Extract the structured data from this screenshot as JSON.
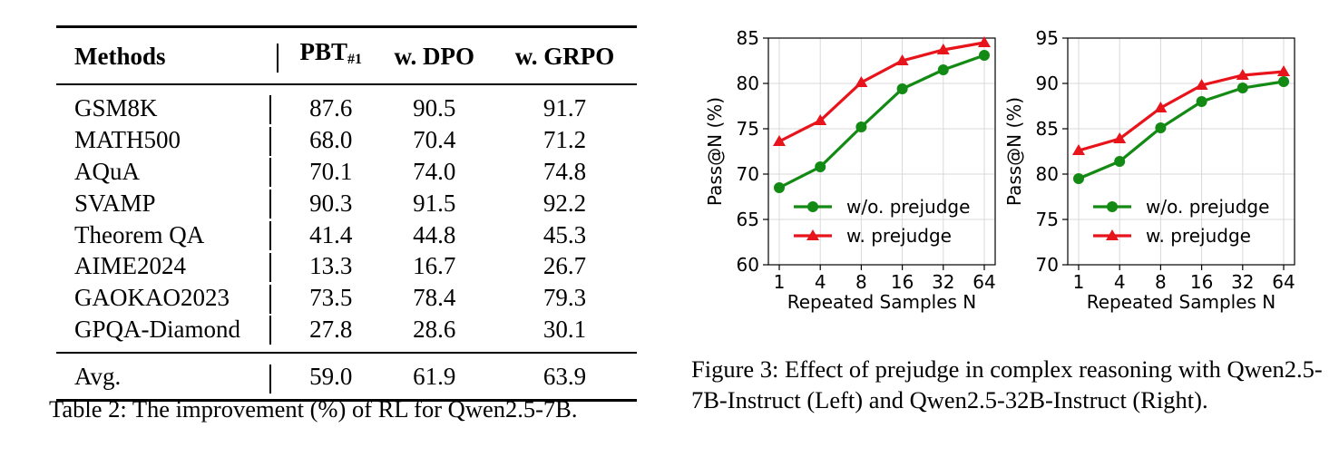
{
  "table": {
    "headers": [
      "Methods",
      "PBT",
      "w. DPO",
      "w. GRPO"
    ],
    "pbt_subscript": "#1",
    "rows": [
      {
        "method": "GSM8K",
        "pbt": "87.6",
        "dpo": "90.5",
        "grpo": "91.7"
      },
      {
        "method": "MATH500",
        "pbt": "68.0",
        "dpo": "70.4",
        "grpo": "71.2"
      },
      {
        "method": "AQuA",
        "pbt": "70.1",
        "dpo": "74.0",
        "grpo": "74.8"
      },
      {
        "method": "SVAMP",
        "pbt": "90.3",
        "dpo": "91.5",
        "grpo": "92.2"
      },
      {
        "method": "Theorem QA",
        "pbt": "41.4",
        "dpo": "44.8",
        "grpo": "45.3"
      },
      {
        "method": "AIME2024",
        "pbt": "13.3",
        "dpo": "16.7",
        "grpo": "26.7"
      },
      {
        "method": "GAOKAO2023",
        "pbt": "73.5",
        "dpo": "78.4",
        "grpo": "79.3"
      },
      {
        "method": "GPQA-Diamond",
        "pbt": "27.8",
        "dpo": "28.6",
        "grpo": "30.1"
      }
    ],
    "avg": {
      "method": "Avg.",
      "pbt": "59.0",
      "dpo": "61.9",
      "grpo": "63.9"
    },
    "caption": "Table 2: The improvement (%) of RL for Qwen2.5-7B."
  },
  "figure": {
    "caption": "Figure 3: Effect of prejudge in complex reasoning with Qwen2.5-7B-Instruct (Left) and Qwen2.5-32B-Instruct (Right)."
  },
  "colors": {
    "green": "#138a13",
    "red": "#e8141c",
    "grid": "#d9d9d9"
  },
  "chart_data": [
    {
      "type": "line",
      "title": "",
      "xlabel": "Repeated Samples N",
      "ylabel": "Pass@N (%)",
      "categories": [
        "1",
        "4",
        "8",
        "16",
        "32",
        "64"
      ],
      "ylim": [
        60,
        85
      ],
      "yticks": [
        60,
        65,
        70,
        75,
        80,
        85
      ],
      "grid": true,
      "legend": "lower-right",
      "series": [
        {
          "name": "w/o. prejudge",
          "color": "#138a13",
          "marker": "circle",
          "values": [
            68.5,
            70.8,
            75.2,
            79.4,
            81.5,
            83.1
          ]
        },
        {
          "name": "w. prejudge",
          "color": "#e8141c",
          "marker": "triangle",
          "values": [
            73.6,
            75.9,
            80.1,
            82.5,
            83.7,
            84.5
          ]
        }
      ]
    },
    {
      "type": "line",
      "title": "",
      "xlabel": "Repeated Samples N",
      "ylabel": "Pass@N (%)",
      "categories": [
        "1",
        "4",
        "8",
        "16",
        "32",
        "64"
      ],
      "ylim": [
        70,
        95
      ],
      "yticks": [
        70,
        75,
        80,
        85,
        90,
        95
      ],
      "grid": true,
      "legend": "lower-right",
      "series": [
        {
          "name": "w/o. prejudge",
          "color": "#138a13",
          "marker": "circle",
          "values": [
            79.5,
            81.4,
            85.1,
            88.0,
            89.5,
            90.2
          ]
        },
        {
          "name": "w. prejudge",
          "color": "#e8141c",
          "marker": "triangle",
          "values": [
            82.6,
            83.9,
            87.3,
            89.8,
            90.9,
            91.3
          ]
        }
      ]
    }
  ]
}
